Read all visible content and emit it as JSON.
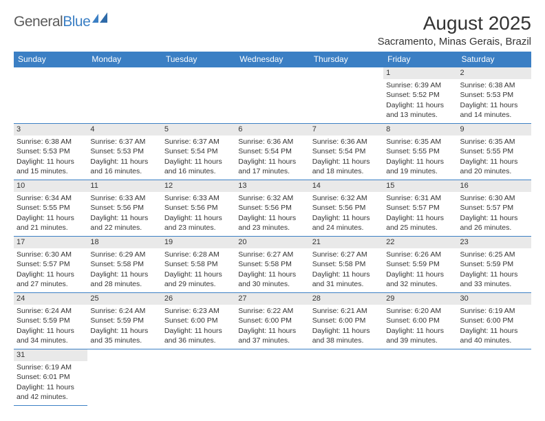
{
  "logo": {
    "text1": "General",
    "text2": "Blue"
  },
  "title": "August 2025",
  "location": "Sacramento, Minas Gerais, Brazil",
  "colors": {
    "header_bg": "#3b7fc4",
    "header_fg": "#ffffff",
    "daynum_bg": "#e9e9e9",
    "grid_line": "#3b7fc4",
    "text": "#333333",
    "logo_gray": "#5a5a5a",
    "logo_blue": "#3b7fc4"
  },
  "weekdays": [
    "Sunday",
    "Monday",
    "Tuesday",
    "Wednesday",
    "Thursday",
    "Friday",
    "Saturday"
  ],
  "weeks": [
    [
      null,
      null,
      null,
      null,
      null,
      {
        "n": "1",
        "sr": "6:39 AM",
        "ss": "5:52 PM",
        "dl": "11 hours and 13 minutes."
      },
      {
        "n": "2",
        "sr": "6:38 AM",
        "ss": "5:53 PM",
        "dl": "11 hours and 14 minutes."
      }
    ],
    [
      {
        "n": "3",
        "sr": "6:38 AM",
        "ss": "5:53 PM",
        "dl": "11 hours and 15 minutes."
      },
      {
        "n": "4",
        "sr": "6:37 AM",
        "ss": "5:53 PM",
        "dl": "11 hours and 16 minutes."
      },
      {
        "n": "5",
        "sr": "6:37 AM",
        "ss": "5:54 PM",
        "dl": "11 hours and 16 minutes."
      },
      {
        "n": "6",
        "sr": "6:36 AM",
        "ss": "5:54 PM",
        "dl": "11 hours and 17 minutes."
      },
      {
        "n": "7",
        "sr": "6:36 AM",
        "ss": "5:54 PM",
        "dl": "11 hours and 18 minutes."
      },
      {
        "n": "8",
        "sr": "6:35 AM",
        "ss": "5:55 PM",
        "dl": "11 hours and 19 minutes."
      },
      {
        "n": "9",
        "sr": "6:35 AM",
        "ss": "5:55 PM",
        "dl": "11 hours and 20 minutes."
      }
    ],
    [
      {
        "n": "10",
        "sr": "6:34 AM",
        "ss": "5:55 PM",
        "dl": "11 hours and 21 minutes."
      },
      {
        "n": "11",
        "sr": "6:33 AM",
        "ss": "5:56 PM",
        "dl": "11 hours and 22 minutes."
      },
      {
        "n": "12",
        "sr": "6:33 AM",
        "ss": "5:56 PM",
        "dl": "11 hours and 23 minutes."
      },
      {
        "n": "13",
        "sr": "6:32 AM",
        "ss": "5:56 PM",
        "dl": "11 hours and 23 minutes."
      },
      {
        "n": "14",
        "sr": "6:32 AM",
        "ss": "5:56 PM",
        "dl": "11 hours and 24 minutes."
      },
      {
        "n": "15",
        "sr": "6:31 AM",
        "ss": "5:57 PM",
        "dl": "11 hours and 25 minutes."
      },
      {
        "n": "16",
        "sr": "6:30 AM",
        "ss": "5:57 PM",
        "dl": "11 hours and 26 minutes."
      }
    ],
    [
      {
        "n": "17",
        "sr": "6:30 AM",
        "ss": "5:57 PM",
        "dl": "11 hours and 27 minutes."
      },
      {
        "n": "18",
        "sr": "6:29 AM",
        "ss": "5:58 PM",
        "dl": "11 hours and 28 minutes."
      },
      {
        "n": "19",
        "sr": "6:28 AM",
        "ss": "5:58 PM",
        "dl": "11 hours and 29 minutes."
      },
      {
        "n": "20",
        "sr": "6:27 AM",
        "ss": "5:58 PM",
        "dl": "11 hours and 30 minutes."
      },
      {
        "n": "21",
        "sr": "6:27 AM",
        "ss": "5:58 PM",
        "dl": "11 hours and 31 minutes."
      },
      {
        "n": "22",
        "sr": "6:26 AM",
        "ss": "5:59 PM",
        "dl": "11 hours and 32 minutes."
      },
      {
        "n": "23",
        "sr": "6:25 AM",
        "ss": "5:59 PM",
        "dl": "11 hours and 33 minutes."
      }
    ],
    [
      {
        "n": "24",
        "sr": "6:24 AM",
        "ss": "5:59 PM",
        "dl": "11 hours and 34 minutes."
      },
      {
        "n": "25",
        "sr": "6:24 AM",
        "ss": "5:59 PM",
        "dl": "11 hours and 35 minutes."
      },
      {
        "n": "26",
        "sr": "6:23 AM",
        "ss": "6:00 PM",
        "dl": "11 hours and 36 minutes."
      },
      {
        "n": "27",
        "sr": "6:22 AM",
        "ss": "6:00 PM",
        "dl": "11 hours and 37 minutes."
      },
      {
        "n": "28",
        "sr": "6:21 AM",
        "ss": "6:00 PM",
        "dl": "11 hours and 38 minutes."
      },
      {
        "n": "29",
        "sr": "6:20 AM",
        "ss": "6:00 PM",
        "dl": "11 hours and 39 minutes."
      },
      {
        "n": "30",
        "sr": "6:19 AM",
        "ss": "6:00 PM",
        "dl": "11 hours and 40 minutes."
      }
    ],
    [
      {
        "n": "31",
        "sr": "6:19 AM",
        "ss": "6:01 PM",
        "dl": "11 hours and 42 minutes."
      },
      null,
      null,
      null,
      null,
      null,
      null
    ]
  ],
  "labels": {
    "sunrise": "Sunrise:",
    "sunset": "Sunset:",
    "daylight": "Daylight:"
  }
}
